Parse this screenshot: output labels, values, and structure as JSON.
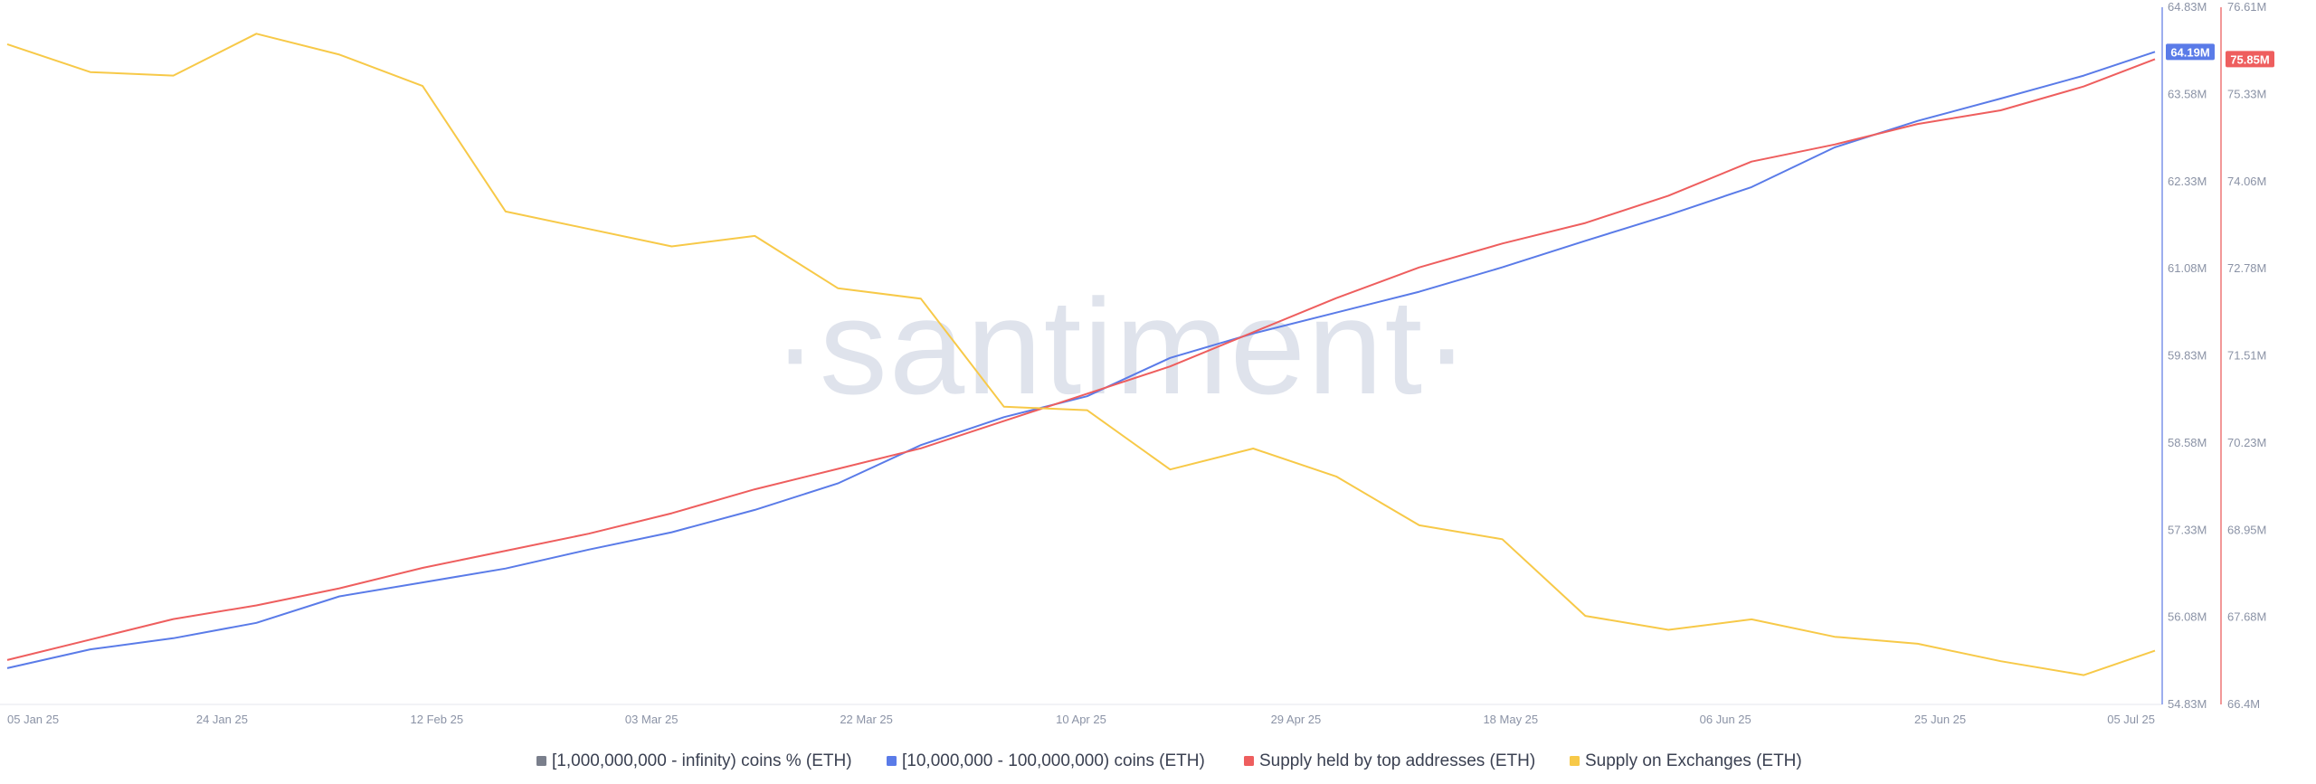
{
  "watermark": "·santiment·",
  "colors": {
    "whales_1b": "#7a7f8c",
    "whales_10m": "#5a7be8",
    "top_addresses": "#ee5e5e",
    "exchanges": "#f7c948"
  },
  "chart_data": {
    "type": "line",
    "title": "",
    "x_ticks": [
      "05 Jan 25",
      "24 Jan 25",
      "12 Feb 25",
      "03 Mar 25",
      "22 Mar 25",
      "10 Apr 25",
      "29 Apr 25",
      "18 May 25",
      "06 Jun 25",
      "25 Jun 25",
      "05 Jul 25"
    ],
    "x_range": [
      "2025-01-05",
      "2025-07-05"
    ],
    "left_axis": {
      "range": [
        54.83,
        64.83
      ],
      "tick_labels": [
        "64.83M",
        "63.58M",
        "62.33M",
        "61.08M",
        "59.83M",
        "58.58M",
        "57.33M",
        "56.08M",
        "54.83M"
      ],
      "current_badge": "64.19M"
    },
    "right_axis": {
      "range": [
        66.4,
        76.61
      ],
      "tick_labels": [
        "76.61M",
        "75.33M",
        "74.06M",
        "72.78M",
        "71.51M",
        "70.23M",
        "68.95M",
        "67.68M",
        "66.4M"
      ],
      "current_badge": "75.85M"
    },
    "legend": [
      {
        "key": "whales_1b",
        "label": "[1,000,000,000 - infinity) coins % (ETH)"
      },
      {
        "key": "whales_10m",
        "label": "[10,000,000 - 100,000,000) coins (ETH)"
      },
      {
        "key": "top_addresses",
        "label": "Supply held by top addresses (ETH)"
      },
      {
        "key": "exchanges",
        "label": "Supply on Exchanges (ETH)"
      }
    ],
    "series": [
      {
        "key": "whales_10m",
        "name": "[10,000,000 - 100,000,000) coins (ETH)",
        "axis": "left",
        "points": [
          [
            "2025-01-05",
            55.35
          ],
          [
            "2025-01-12",
            55.62
          ],
          [
            "2025-01-19",
            55.78
          ],
          [
            "2025-01-26",
            56.0
          ],
          [
            "2025-02-02",
            56.38
          ],
          [
            "2025-02-09",
            56.58
          ],
          [
            "2025-02-16",
            56.78
          ],
          [
            "2025-02-23",
            57.05
          ],
          [
            "2025-03-02",
            57.3
          ],
          [
            "2025-03-09",
            57.62
          ],
          [
            "2025-03-16",
            58.0
          ],
          [
            "2025-03-23",
            58.55
          ],
          [
            "2025-03-30",
            58.95
          ],
          [
            "2025-04-06",
            59.25
          ],
          [
            "2025-04-13",
            59.8
          ],
          [
            "2025-04-20",
            60.15
          ],
          [
            "2025-04-27",
            60.45
          ],
          [
            "2025-05-04",
            60.75
          ],
          [
            "2025-05-11",
            61.1
          ],
          [
            "2025-05-18",
            61.48
          ],
          [
            "2025-05-25",
            61.85
          ],
          [
            "2025-06-01",
            62.25
          ],
          [
            "2025-06-08",
            62.82
          ],
          [
            "2025-06-15",
            63.2
          ],
          [
            "2025-06-22",
            63.52
          ],
          [
            "2025-06-29",
            63.85
          ],
          [
            "2025-07-05",
            64.19
          ]
        ]
      },
      {
        "key": "top_addresses",
        "name": "Supply held by top addresses (ETH)",
        "axis": "right",
        "points": [
          [
            "2025-01-05",
            67.05
          ],
          [
            "2025-01-12",
            67.35
          ],
          [
            "2025-01-19",
            67.65
          ],
          [
            "2025-01-26",
            67.85
          ],
          [
            "2025-02-02",
            68.1
          ],
          [
            "2025-02-09",
            68.4
          ],
          [
            "2025-02-16",
            68.65
          ],
          [
            "2025-02-23",
            68.9
          ],
          [
            "2025-03-02",
            69.2
          ],
          [
            "2025-03-09",
            69.55
          ],
          [
            "2025-03-16",
            69.85
          ],
          [
            "2025-03-23",
            70.15
          ],
          [
            "2025-03-30",
            70.55
          ],
          [
            "2025-04-06",
            70.95
          ],
          [
            "2025-04-13",
            71.35
          ],
          [
            "2025-04-20",
            71.85
          ],
          [
            "2025-04-27",
            72.35
          ],
          [
            "2025-05-04",
            72.8
          ],
          [
            "2025-05-11",
            73.15
          ],
          [
            "2025-05-18",
            73.45
          ],
          [
            "2025-05-25",
            73.85
          ],
          [
            "2025-06-01",
            74.35
          ],
          [
            "2025-06-08",
            74.6
          ],
          [
            "2025-06-15",
            74.9
          ],
          [
            "2025-06-22",
            75.1
          ],
          [
            "2025-06-29",
            75.45
          ],
          [
            "2025-07-05",
            75.85
          ]
        ]
      },
      {
        "key": "exchanges",
        "name": "Supply on Exchanges (ETH)",
        "axis": "left",
        "points": [
          [
            "2025-01-05",
            64.3
          ],
          [
            "2025-01-12",
            63.9
          ],
          [
            "2025-01-19",
            63.85
          ],
          [
            "2025-01-26",
            64.45
          ],
          [
            "2025-02-02",
            64.15
          ],
          [
            "2025-02-09",
            63.7
          ],
          [
            "2025-02-16",
            61.9
          ],
          [
            "2025-02-23",
            61.65
          ],
          [
            "2025-03-02",
            61.4
          ],
          [
            "2025-03-09",
            61.55
          ],
          [
            "2025-03-16",
            60.8
          ],
          [
            "2025-03-23",
            60.65
          ],
          [
            "2025-03-30",
            59.1
          ],
          [
            "2025-04-06",
            59.05
          ],
          [
            "2025-04-13",
            58.2
          ],
          [
            "2025-04-20",
            58.5
          ],
          [
            "2025-04-27",
            58.1
          ],
          [
            "2025-05-04",
            57.4
          ],
          [
            "2025-05-11",
            57.2
          ],
          [
            "2025-05-18",
            56.1
          ],
          [
            "2025-05-25",
            55.9
          ],
          [
            "2025-06-01",
            56.05
          ],
          [
            "2025-06-08",
            55.8
          ],
          [
            "2025-06-15",
            55.7
          ],
          [
            "2025-06-22",
            55.45
          ],
          [
            "2025-06-29",
            55.25
          ],
          [
            "2025-07-05",
            55.6
          ]
        ]
      }
    ]
  }
}
